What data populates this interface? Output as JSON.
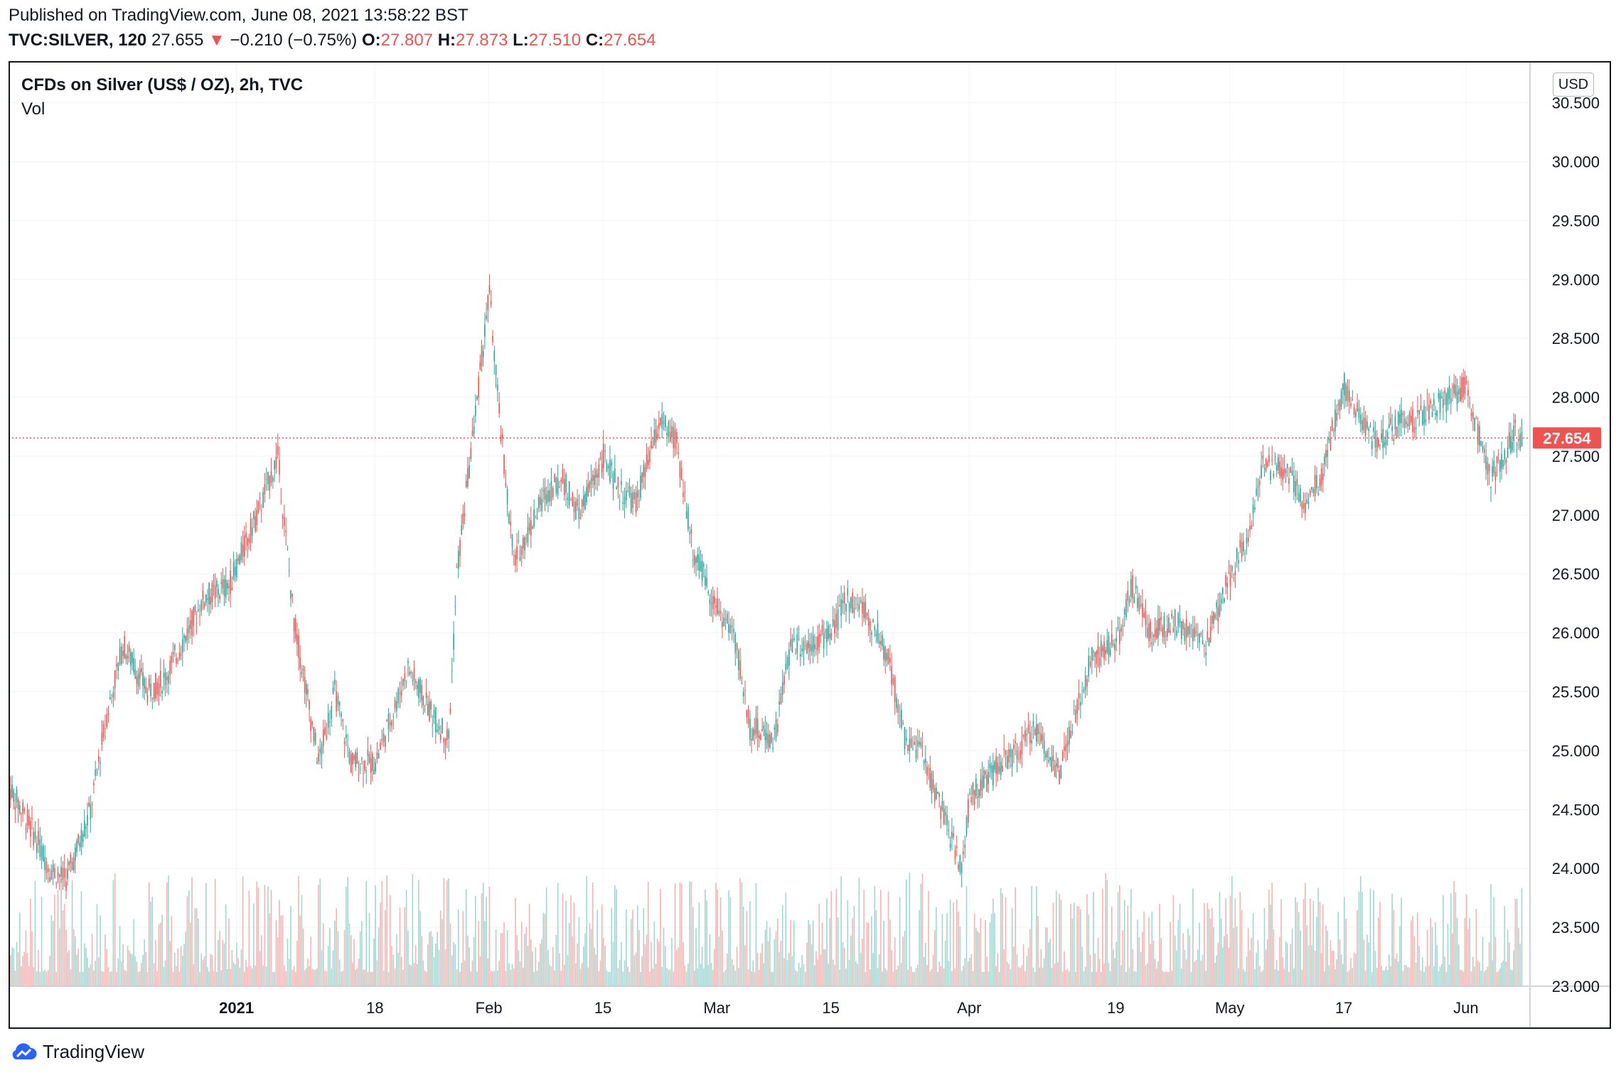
{
  "header": {
    "published": "Published on TradingView.com, June 08, 2021 13:58:22 BST",
    "symbol": "TVC:SILVER, 120",
    "last": "27.655",
    "change_arrow": "▼",
    "change": "−0.210 (−0.75%)",
    "o_label": "O:",
    "o_value": "27.807",
    "h_label": "H:",
    "h_value": "27.873",
    "l_label": "L:",
    "l_value": "27.510",
    "c_label": "C:",
    "c_value": "27.654"
  },
  "legend": {
    "title": "CFDs on Silver (US$ / OZ), 2h, TVC",
    "volume": "Vol"
  },
  "currency_button": "USD",
  "footer": {
    "brand": "TradingView",
    "logo_icon": "tradingview-cloud-logo-icon"
  },
  "colors": {
    "up": "#26a69a",
    "down": "#ef5350",
    "up_vol": "#9fd8d2",
    "down_vol": "#f7b3b1",
    "grid": "#f0f3fa",
    "text": "#131722"
  },
  "chart_data": {
    "type": "candlestick",
    "ylim": [
      23.0,
      30.6
    ],
    "last_price": 27.654,
    "last_price_label": "27.654",
    "y_ticks": [
      23.0,
      23.5,
      24.0,
      24.5,
      25.0,
      25.5,
      26.0,
      26.5,
      27.0,
      27.5,
      28.0,
      28.5,
      29.0,
      29.5,
      30.0,
      30.5
    ],
    "y_tick_labels": [
      "23.000",
      "23.500",
      "24.000",
      "24.500",
      "25.000",
      "25.500",
      "26.000",
      "26.500",
      "27.000",
      "27.500",
      "28.000",
      "28.500",
      "29.000",
      "29.500",
      "30.000",
      "30.500"
    ],
    "x_ticks": [
      {
        "label": "2021",
        "date": "2021-01-01",
        "bold": true
      },
      {
        "label": "18",
        "date": "2021-01-18"
      },
      {
        "label": "Feb",
        "date": "2021-02-01",
        "bold": false
      },
      {
        "label": "15",
        "date": "2021-02-15"
      },
      {
        "label": "Mar",
        "date": "2021-03-01"
      },
      {
        "label": "15",
        "date": "2021-03-15"
      },
      {
        "label": "Apr",
        "date": "2021-04-01"
      },
      {
        "label": "19",
        "date": "2021-04-19"
      },
      {
        "label": "May",
        "date": "2021-05-03"
      },
      {
        "label": "17",
        "date": "2021-05-17"
      },
      {
        "label": "Jun",
        "date": "2021-06-01"
      }
    ],
    "price_path": [
      [
        "2020-12-04",
        24.7
      ],
      [
        "2020-12-07",
        24.3
      ],
      [
        "2020-12-09",
        24.0
      ],
      [
        "2020-12-11",
        23.9
      ],
      [
        "2020-12-14",
        24.5
      ],
      [
        "2020-12-16",
        25.3
      ],
      [
        "2020-12-18",
        25.9
      ],
      [
        "2020-12-21",
        25.5
      ],
      [
        "2020-12-23",
        25.6
      ],
      [
        "2020-12-28",
        26.3
      ],
      [
        "2020-12-31",
        26.4
      ],
      [
        "2021-01-04",
        27.1
      ],
      [
        "2021-01-06",
        27.5
      ],
      [
        "2021-01-08",
        26.1
      ],
      [
        "2021-01-11",
        24.9
      ],
      [
        "2021-01-13",
        25.5
      ],
      [
        "2021-01-15",
        24.9
      ],
      [
        "2021-01-18",
        24.9
      ],
      [
        "2021-01-20",
        25.3
      ],
      [
        "2021-01-22",
        25.7
      ],
      [
        "2021-01-25",
        25.3
      ],
      [
        "2021-01-27",
        25.1
      ],
      [
        "2021-01-28",
        26.5
      ],
      [
        "2021-02-01",
        28.9
      ],
      [
        "2021-02-02",
        28.0
      ],
      [
        "2021-02-04",
        26.6
      ],
      [
        "2021-02-08",
        27.2
      ],
      [
        "2021-02-10",
        27.3
      ],
      [
        "2021-02-12",
        27.0
      ],
      [
        "2021-02-15",
        27.5
      ],
      [
        "2021-02-17",
        27.2
      ],
      [
        "2021-02-19",
        27.1
      ],
      [
        "2021-02-22",
        27.8
      ],
      [
        "2021-02-24",
        27.6
      ],
      [
        "2021-02-26",
        26.7
      ],
      [
        "2021-03-01",
        26.2
      ],
      [
        "2021-03-03",
        26.0
      ],
      [
        "2021-03-05",
        25.2
      ],
      [
        "2021-03-08",
        25.1
      ],
      [
        "2021-03-10",
        25.9
      ],
      [
        "2021-03-12",
        25.9
      ],
      [
        "2021-03-15",
        26.0
      ],
      [
        "2021-03-17",
        26.3
      ],
      [
        "2021-03-19",
        26.2
      ],
      [
        "2021-03-22",
        25.8
      ],
      [
        "2021-03-24",
        25.1
      ],
      [
        "2021-03-26",
        25.0
      ],
      [
        "2021-03-29",
        24.4
      ],
      [
        "2021-03-31",
        24.0
      ],
      [
        "2021-04-01",
        24.6
      ],
      [
        "2021-04-05",
        24.9
      ],
      [
        "2021-04-07",
        25.0
      ],
      [
        "2021-04-09",
        25.2
      ],
      [
        "2021-04-12",
        24.8
      ],
      [
        "2021-04-14",
        25.3
      ],
      [
        "2021-04-16",
        25.8
      ],
      [
        "2021-04-19",
        25.9
      ],
      [
        "2021-04-21",
        26.4
      ],
      [
        "2021-04-23",
        26.0
      ],
      [
        "2021-04-26",
        26.1
      ],
      [
        "2021-04-28",
        26.0
      ],
      [
        "2021-04-30",
        25.9
      ],
      [
        "2021-05-03",
        26.5
      ],
      [
        "2021-05-05",
        26.8
      ],
      [
        "2021-05-07",
        27.4
      ],
      [
        "2021-05-10",
        27.4
      ],
      [
        "2021-05-12",
        27.1
      ],
      [
        "2021-05-14",
        27.3
      ],
      [
        "2021-05-17",
        28.1
      ],
      [
        "2021-05-19",
        27.8
      ],
      [
        "2021-05-21",
        27.6
      ],
      [
        "2021-05-24",
        27.8
      ],
      [
        "2021-05-26",
        27.8
      ],
      [
        "2021-05-28",
        27.9
      ],
      [
        "2021-06-01",
        28.1
      ],
      [
        "2021-06-02",
        27.8
      ],
      [
        "2021-06-04",
        27.3
      ],
      [
        "2021-06-07",
        27.7
      ],
      [
        "2021-06-08",
        27.654
      ]
    ]
  }
}
